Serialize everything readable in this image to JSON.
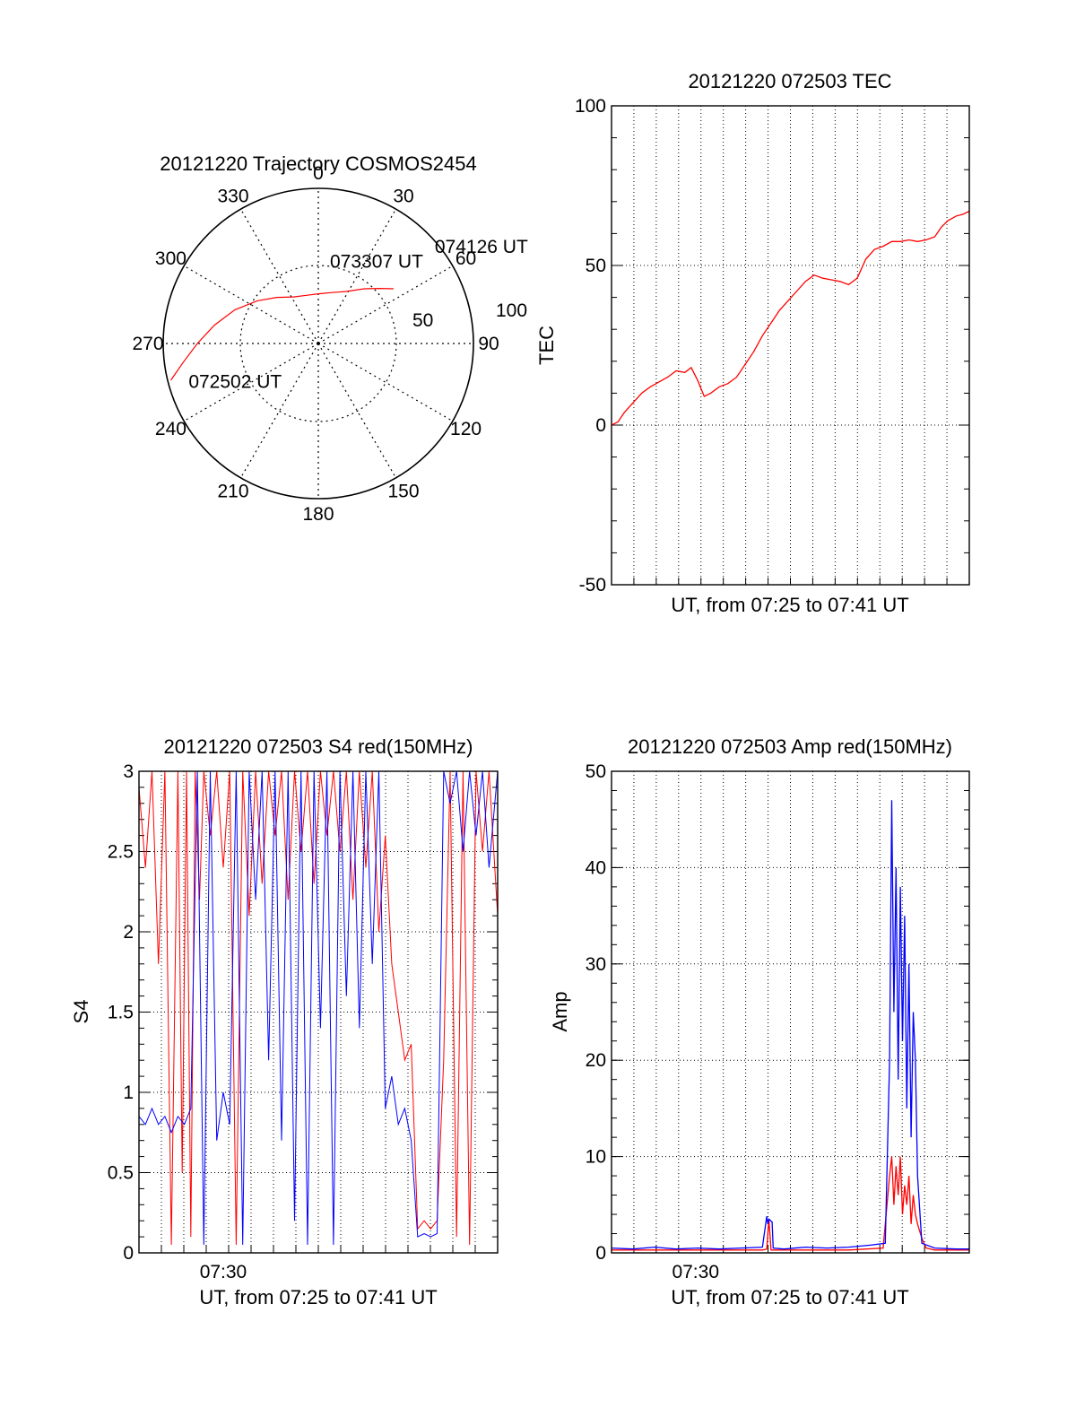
{
  "colors": {
    "red_series": "#ff0000",
    "blue_series": "#0000ff",
    "axis": "#000000"
  },
  "chart_data": [
    {
      "id": "trajectory",
      "type": "polar",
      "title": "20121220 Trajectory COSMOS2454",
      "azimuth_labels": [
        "0",
        "30",
        "60",
        "90",
        "120",
        "150",
        "180",
        "210",
        "240",
        "270",
        "300",
        "330"
      ],
      "radial_labels": [
        "50",
        "100"
      ],
      "rlim": [
        0,
        100
      ],
      "series": [
        {
          "color": "#ff0000",
          "points": [
            [
              256,
              98
            ],
            [
              262,
              88
            ],
            [
              270,
              78
            ],
            [
              280,
              68
            ],
            [
              292,
              58
            ],
            [
              305,
              48
            ],
            [
              318,
              40
            ],
            [
              332,
              34
            ],
            [
              346,
              32
            ],
            [
              360,
              32
            ],
            [
              15,
              34
            ],
            [
              28,
              38
            ],
            [
              40,
              46
            ],
            [
              48,
              53
            ],
            [
              54,
              60
            ]
          ]
        }
      ],
      "annotations": [
        {
          "text": "072502 UT",
          "az": 254,
          "r": 87
        },
        {
          "text": "073307 UT",
          "az": 8,
          "r": 54
        },
        {
          "text": "074126 UT",
          "az": 50,
          "r": 98
        }
      ]
    },
    {
      "id": "tec",
      "type": "line",
      "title": "20121220 072503 TEC",
      "xlabel": "UT, from 07:25 to 07:41 UT",
      "ylabel": "TEC",
      "xlim": [
        0,
        16.6
      ],
      "ylim": [
        -50,
        100
      ],
      "yticks": [
        "-50",
        "0",
        "50",
        "100"
      ],
      "series": [
        {
          "color": "#ff0000",
          "x": [
            0,
            0.3,
            0.6,
            1.0,
            1.4,
            1.8,
            2.2,
            2.6,
            3.0,
            3.4,
            3.7,
            4.0,
            4.3,
            4.6,
            5.0,
            5.4,
            5.8,
            6.2,
            6.6,
            7.0,
            7.4,
            7.8,
            8.2,
            8.6,
            9.0,
            9.4,
            9.8,
            10.2,
            10.6,
            11.0,
            11.4,
            11.8,
            12.2,
            12.6,
            13.0,
            13.4,
            13.8,
            14.2,
            14.6,
            15.0,
            15.3,
            15.6,
            16.0,
            16.3,
            16.6
          ],
          "y": [
            0,
            1,
            4,
            7,
            10,
            12,
            13.5,
            15,
            17,
            16.5,
            18,
            14,
            9,
            10,
            12,
            13,
            15,
            19,
            23,
            28,
            32,
            36,
            39,
            42,
            45,
            47,
            46,
            45.5,
            45,
            44,
            46,
            52,
            55,
            56,
            57.5,
            57.5,
            58,
            57.5,
            58,
            59,
            62,
            64,
            65.5,
            66,
            67
          ]
        }
      ]
    },
    {
      "id": "s4",
      "type": "line",
      "title": "20121220 072503 S4 red(150MHz)",
      "xlabel": "UT, from 07:25 to 07:41 UT",
      "ylabel": "S4",
      "xlim": [
        0,
        16.6
      ],
      "ylim": [
        0,
        3
      ],
      "yticks": [
        "0",
        "0.5",
        "1",
        "1.5",
        "2",
        "2.5",
        "3"
      ],
      "xticks": [
        {
          "x": 3.9,
          "label": "07:30"
        }
      ],
      "series": [
        {
          "color": "#ff0000",
          "x": [
            0,
            0.3,
            0.6,
            0.9,
            1.2,
            1.5,
            1.8,
            2.0,
            2.2,
            2.4,
            2.6,
            2.8,
            3.0,
            3.3,
            3.6,
            3.9,
            4.2,
            4.5,
            4.8,
            5.1,
            5.4,
            5.7,
            6.0,
            6.3,
            6.6,
            6.9,
            7.2,
            7.5,
            7.8,
            8.1,
            8.4,
            8.7,
            9.0,
            9.3,
            9.6,
            9.9,
            10.2,
            10.5,
            10.8,
            11.1,
            11.4,
            11.7,
            12.0,
            12.3,
            12.6,
            12.9,
            13.2,
            13.5,
            13.8,
            14.1,
            14.4,
            14.7,
            15.0,
            15.3,
            15.6,
            15.9,
            16.2,
            16.6
          ],
          "y": [
            2.9,
            2.4,
            3.0,
            1.8,
            3.0,
            0.05,
            3.0,
            0.5,
            3.0,
            0.1,
            3.0,
            2.2,
            3.0,
            2.6,
            3.0,
            2.4,
            3.0,
            0.05,
            3.0,
            2.1,
            3.0,
            2.3,
            3.0,
            2.6,
            3.0,
            2.2,
            3.0,
            2.5,
            3.0,
            2.3,
            3.0,
            2.6,
            3.0,
            2.5,
            3.0,
            2.2,
            3.0,
            2.4,
            3.0,
            2.0,
            2.6,
            1.8,
            1.5,
            1.2,
            1.3,
            0.15,
            0.2,
            0.15,
            0.2,
            1.2,
            3.0,
            0.1,
            3.0,
            0.05,
            3.0,
            2.5,
            3.0,
            2.1
          ]
        },
        {
          "color": "#0000ff",
          "x": [
            0,
            0.3,
            0.6,
            0.9,
            1.2,
            1.5,
            1.8,
            2.1,
            2.4,
            2.7,
            3.0,
            3.3,
            3.6,
            3.9,
            4.2,
            4.5,
            4.8,
            5.1,
            5.4,
            5.7,
            6.0,
            6.3,
            6.6,
            6.9,
            7.2,
            7.5,
            7.8,
            8.1,
            8.4,
            8.7,
            9.0,
            9.3,
            9.6,
            9.9,
            10.2,
            10.5,
            10.8,
            11.1,
            11.4,
            11.7,
            12.0,
            12.3,
            12.6,
            12.9,
            13.2,
            13.5,
            13.8,
            14.1,
            14.4,
            14.7,
            15.0,
            15.3,
            15.6,
            15.9,
            16.2,
            16.6
          ],
          "y": [
            0.85,
            0.8,
            0.9,
            0.8,
            0.85,
            0.75,
            0.85,
            0.8,
            0.9,
            3.0,
            0.05,
            3.0,
            0.7,
            1.0,
            0.8,
            3.0,
            0.05,
            3.0,
            2.2,
            3.0,
            1.2,
            3.0,
            0.7,
            3.0,
            0.2,
            3.0,
            0.05,
            3.0,
            1.4,
            3.0,
            0.05,
            3.0,
            1.6,
            3.0,
            1.4,
            3.0,
            1.8,
            3.0,
            0.9,
            1.1,
            0.8,
            0.9,
            0.7,
            0.1,
            0.12,
            0.1,
            0.12,
            3.0,
            2.8,
            3.0,
            2.5,
            3.0,
            2.6,
            3.0,
            2.4,
            3.0
          ]
        }
      ]
    },
    {
      "id": "amp",
      "type": "line",
      "title": "20121220 072503 Amp red(150MHz)",
      "xlabel": "UT, from 07:25 to 07:41 UT",
      "ylabel": "Amp",
      "xlim": [
        0,
        16.6
      ],
      "ylim": [
        0,
        50
      ],
      "yticks": [
        "0",
        "10",
        "20",
        "30",
        "40",
        "50"
      ],
      "xticks": [
        {
          "x": 3.9,
          "label": "07:30"
        }
      ],
      "series": [
        {
          "color": "#ff0000",
          "x": [
            0,
            2,
            4,
            6,
            7.0,
            7.2,
            7.3,
            7.4,
            7.6,
            9,
            11,
            12.6,
            12.9,
            13.0,
            13.1,
            13.2,
            13.3,
            13.4,
            13.5,
            13.6,
            13.7,
            13.8,
            13.9,
            14.0,
            14.1,
            14.2,
            14.4,
            14.6,
            15,
            16,
            16.6
          ],
          "y": [
            0.3,
            0.3,
            0.3,
            0.3,
            0.3,
            0.4,
            3.5,
            0.3,
            0.3,
            0.3,
            0.3,
            0.5,
            8,
            10,
            5,
            9,
            6,
            10,
            4,
            7,
            5,
            8,
            3,
            6,
            4,
            3,
            1.5,
            0.5,
            0.3,
            0.3,
            0.3
          ]
        },
        {
          "color": "#0000ff",
          "x": [
            0,
            1,
            2,
            3,
            4,
            5,
            6,
            7.0,
            7.2,
            7.25,
            7.3,
            7.45,
            7.5,
            8,
            9,
            10,
            11,
            12,
            12.7,
            12.9,
            13.0,
            13.1,
            13.2,
            13.3,
            13.4,
            13.5,
            13.6,
            13.7,
            13.8,
            13.9,
            14.0,
            14.1,
            14.2,
            14.4,
            15,
            16,
            16.6
          ],
          "y": [
            0.5,
            0.4,
            0.6,
            0.4,
            0.5,
            0.4,
            0.5,
            0.6,
            3.8,
            3.0,
            3.5,
            3.2,
            0.5,
            0.4,
            0.6,
            0.5,
            0.6,
            0.8,
            1.0,
            20,
            47,
            25,
            40,
            18,
            38,
            22,
            35,
            15,
            30,
            12,
            25,
            20,
            8,
            1,
            0.5,
            0.4,
            0.4
          ]
        }
      ]
    }
  ]
}
